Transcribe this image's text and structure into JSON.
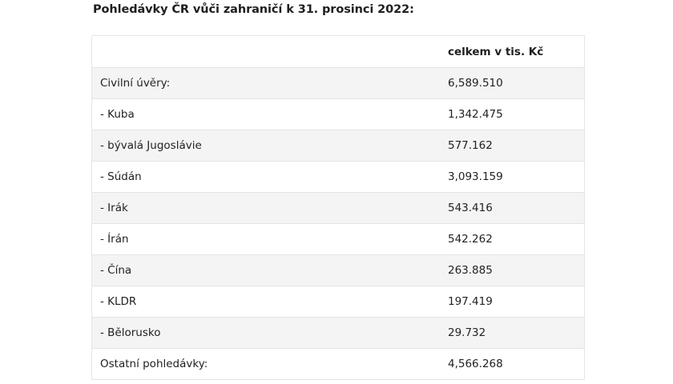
{
  "heading": "Pohledávky ČR vůči zahraničí k 31. prosinci 2022:",
  "table": {
    "header": [
      "",
      "celkem v tis. Kč"
    ],
    "rows": [
      {
        "label": "Civilní úvěry:",
        "value": "6,589.510"
      },
      {
        "label": "- Kuba",
        "value": "1,342.475"
      },
      {
        "label": "- bývalá Jugoslávie",
        "value": "577.162"
      },
      {
        "label": "- Súdán",
        "value": "3,093.159"
      },
      {
        "label": "- Irák",
        "value": "543.416"
      },
      {
        "label": "- Írán",
        "value": "542.262"
      },
      {
        "label": "- Čína",
        "value": "263.885"
      },
      {
        "label": "- KLDR",
        "value": "197.419"
      },
      {
        "label": "- Bělorusko",
        "value": "29.732"
      },
      {
        "label": "Ostatní pohledávky:",
        "value": "4,566.268"
      }
    ]
  }
}
